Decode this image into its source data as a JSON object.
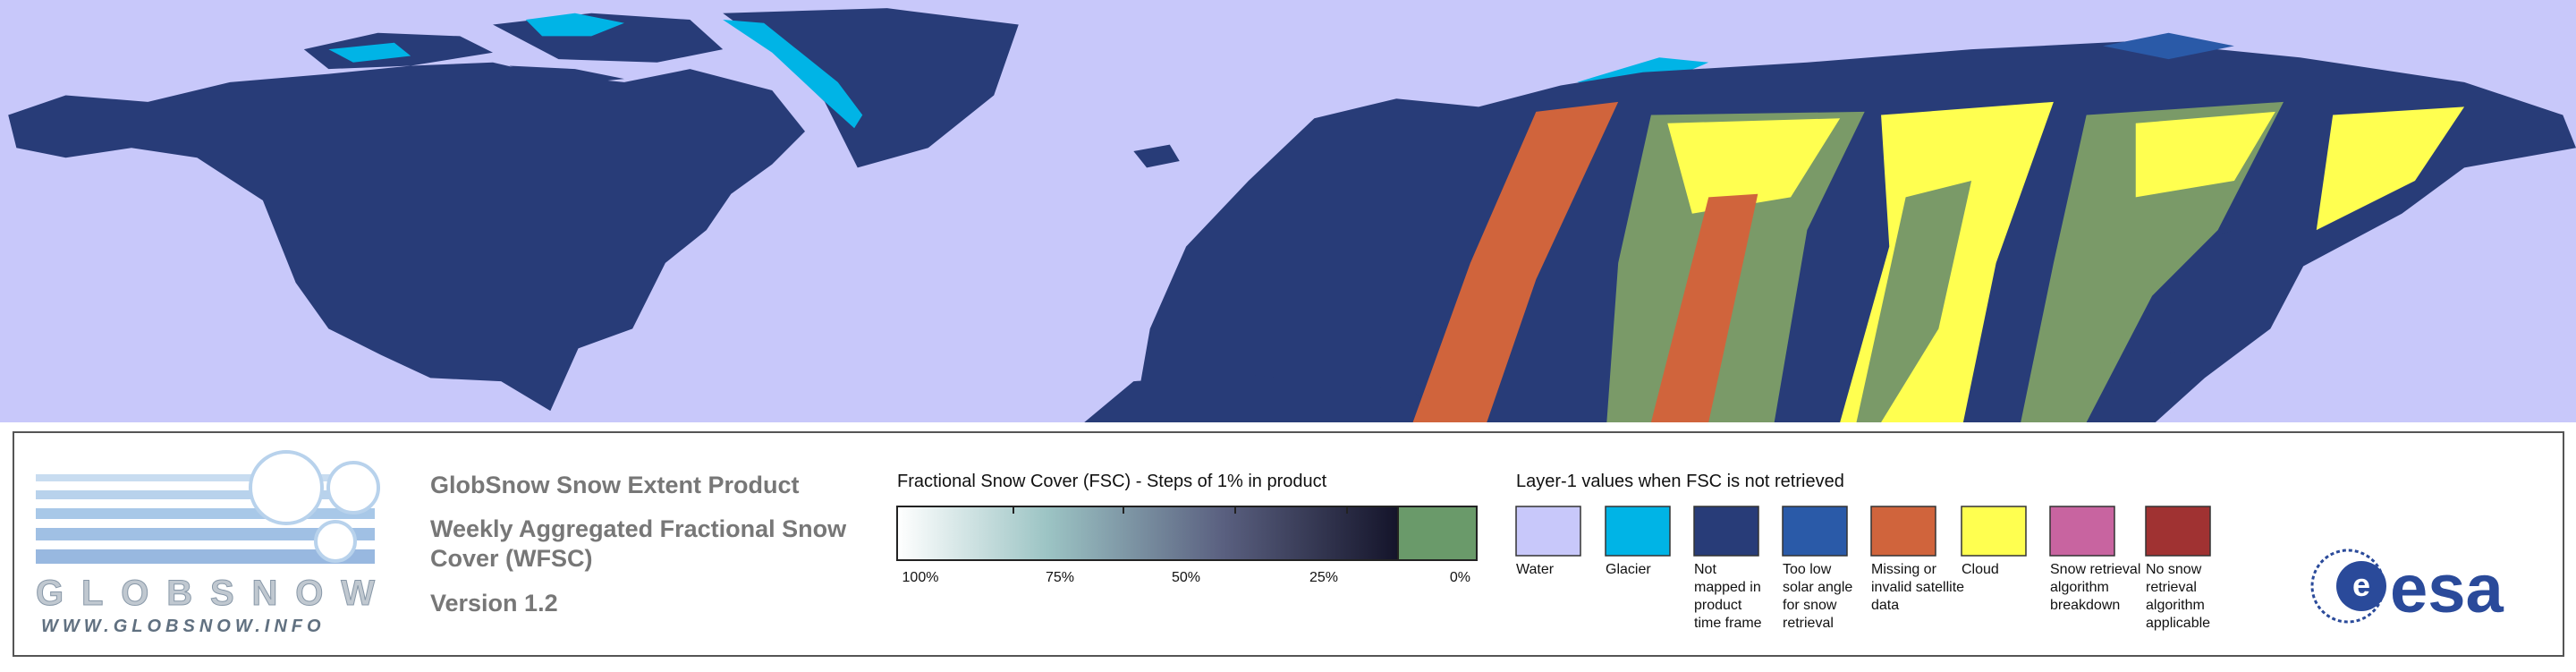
{
  "logo": {
    "name": "GLOBSNOW",
    "url": "WWW.GLOBSNOW.INFO"
  },
  "product": {
    "title": "GlobSnow Snow Extent Product",
    "subtitle_lines": [
      "Weekly Aggregated Fractional Snow",
      "Cover (WFSC)"
    ],
    "version": "Version 1.2"
  },
  "fsc_legend": {
    "title": "Fractional Snow Cover (FSC) - Steps of 1% in product",
    "ticks": [
      "100%",
      "75%",
      "50%",
      "25%",
      "0%"
    ]
  },
  "layer_legend": {
    "title": "Layer-1 values when FSC is not retrieved",
    "items": [
      {
        "color": "#c8c8fa",
        "label_lines": [
          "Water"
        ]
      },
      {
        "color": "#00b4e6",
        "label_lines": [
          "Glacier"
        ]
      },
      {
        "color": "#283c78",
        "label_lines": [
          "Not",
          "mapped in",
          "product",
          "time frame"
        ]
      },
      {
        "color": "#2a5aa8",
        "label_lines": [
          "Too low",
          "solar angle",
          "for snow",
          "retrieval"
        ]
      },
      {
        "color": "#d0643c",
        "label_lines": [
          "Missing or",
          "invalid satellite",
          "data"
        ]
      },
      {
        "color": "#ffff50",
        "label_lines": [
          "Cloud"
        ]
      },
      {
        "color": "#c864a0",
        "label_lines": [
          "Snow retrieval",
          "algorithm",
          "breakdown"
        ]
      },
      {
        "color": "#a03232",
        "label_lines": [
          "No snow",
          "retrieval",
          "algorithm",
          "applicable"
        ]
      }
    ]
  },
  "esa_logo": "esa"
}
